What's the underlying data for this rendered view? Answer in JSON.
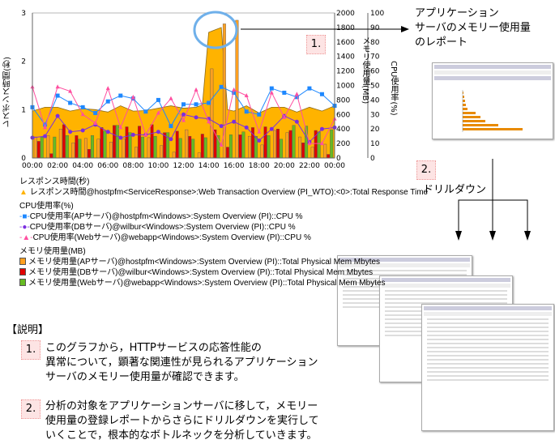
{
  "chart_data": {
    "type": "line",
    "xlabel": "",
    "x_ticks": [
      "00:00",
      "02:00",
      "04:00",
      "06:00",
      "08:00",
      "10:00",
      "12:00",
      "14:00",
      "16:00",
      "18:00",
      "20:00",
      "22:00",
      "00:00"
    ],
    "left_axis": {
      "label": "レスポンス時間(秒)",
      "range": [
        0,
        3
      ],
      "ticks": [
        "0",
        "1",
        "2",
        "3"
      ]
    },
    "mem_axis": {
      "label": "メモリ使用量(MB)",
      "range": [
        0,
        2000
      ],
      "ticks": [
        "0",
        "200",
        "400",
        "600",
        "800",
        "1000",
        "1200",
        "1400",
        "1600",
        "1800",
        "2000"
      ]
    },
    "cpu_axis": {
      "label": "CPU使用率(%)",
      "range": [
        0,
        100
      ],
      "ticks": [
        "0",
        "10",
        "20",
        "30",
        "40",
        "50",
        "60",
        "70",
        "80",
        "90",
        "100"
      ]
    },
    "response": {
      "name": "レスポンス時間@hostpfm<ServiceResponse>:Web Transaction Overview (PI_WTO):<0>:Total Response Time",
      "color": "#ffb300",
      "hours": [
        0,
        1,
        2,
        3,
        4,
        5,
        6,
        7,
        8,
        9,
        10,
        11,
        12,
        13,
        13.5,
        14,
        14.5,
        15,
        15.5,
        16,
        17,
        18,
        19,
        20,
        21,
        22,
        23,
        24
      ],
      "values": [
        0.97,
        1.05,
        1.05,
        0.97,
        1.02,
        1.0,
        0.95,
        1.08,
        0.97,
        0.98,
        1.03,
        1.08,
        1.03,
        1.05,
        1.1,
        2.6,
        2.65,
        2.7,
        1.0,
        0.97,
        1.08,
        0.93,
        1.05,
        1.05,
        0.95,
        1.05,
        0.97,
        1.08
      ]
    },
    "cpu_series": [
      {
        "name": "CPU使用率(APサーバ)@hostpfm<Windows>:System Overview (PI)::CPU %",
        "color": "#1e88ff",
        "marker": "square",
        "values": [
          35,
          23,
          43,
          38,
          35,
          31,
          39,
          43,
          41,
          32,
          40,
          22,
          37,
          37,
          38,
          49,
          45,
          32,
          30,
          48,
          45,
          42,
          48,
          44,
          36
        ]
      },
      {
        "name": "CPU使用率(DBサーバ)@wilbur<Windows>:System Overview (PI)::CPU %",
        "color": "#7b2fe0",
        "marker": "circle",
        "values": [
          14,
          15,
          29,
          18,
          19,
          23,
          18,
          14,
          16,
          16,
          18,
          13,
          30,
          28,
          27,
          22,
          25,
          21,
          12,
          20,
          29,
          25,
          11,
          20,
          21
        ]
      },
      {
        "name": "CPU使用率(Webサーバ)@webapp<Windows>:System Overview (PI)::CPU %",
        "color": "#ff4fa0",
        "marker": "triangle",
        "values": [
          49,
          21,
          49,
          46,
          30,
          24,
          48,
          21,
          42,
          16,
          31,
          41,
          26,
          47,
          25,
          9,
          47,
          43,
          18,
          45,
          28,
          44,
          10,
          10,
          27
        ]
      }
    ],
    "memory_series": [
      {
        "name": "メモリ使用量(APサーバ)@hostpfm<Windows>:System Overview (PI)::Total Physical Mem Mbytes",
        "color": "#ffa020",
        "values": [
          290,
          310,
          400,
          210,
          270,
          260,
          220,
          260,
          150,
          280,
          170,
          80,
          390,
          70,
          1230,
          1850,
          1900,
          300,
          180,
          380,
          350,
          290,
          150,
          190
        ]
      },
      {
        "name": "メモリ使用量(DBサーバ)@wilbur<Windows>:System Overview (PI)::Total Physical Mem Mbytes",
        "color": "#e00000",
        "values": [
          230,
          60,
          460,
          310,
          120,
          420,
          450,
          430,
          440,
          460,
          350,
          370,
          300,
          330,
          390,
          150,
          320,
          420,
          430,
          400,
          380,
          210,
          380,
          50
        ]
      },
      {
        "name": "メモリ使用量(Webサーバ)@webapp<Windows>:System Overview (PI)::Total Physical Mem Mbytes",
        "color": "#66bb22",
        "values": [
          290,
          290,
          310,
          260,
          310,
          370,
          450,
          350,
          290,
          300,
          350,
          270,
          260,
          280,
          310,
          320,
          360,
          300,
          310,
          260,
          450,
          440,
          360,
          390
        ]
      }
    ]
  },
  "legend": {
    "response_title": "レスポンス時間(秒)",
    "cpu_title": "CPU使用率(%)",
    "mem_title": "メモリ使用量(MB)"
  },
  "callouts": {
    "badge1": "1.",
    "badge2": "2.",
    "report_title_lines": [
      "アプリケーション",
      "サーバのメモリー使用量",
      "のレポート"
    ],
    "drilldown": "ドリルダウン"
  },
  "explanation": {
    "heading": "【説明】",
    "items": [
      {
        "num": "1.",
        "lines": [
          "このグラフから，HTTPサービスの応答性能の",
          "異常について，顕著な関連性が見られるアプリケーション",
          "サーバのメモリー使用量が確認できます。"
        ]
      },
      {
        "num": "2.",
        "lines": [
          "分析の対象をアプリケーションサーバに移して，メモリー",
          "使用量の登録レポートからさらにドリルダウンを実行して",
          "いくことで，根本的なボトルネックを分析していきます。"
        ]
      }
    ]
  }
}
